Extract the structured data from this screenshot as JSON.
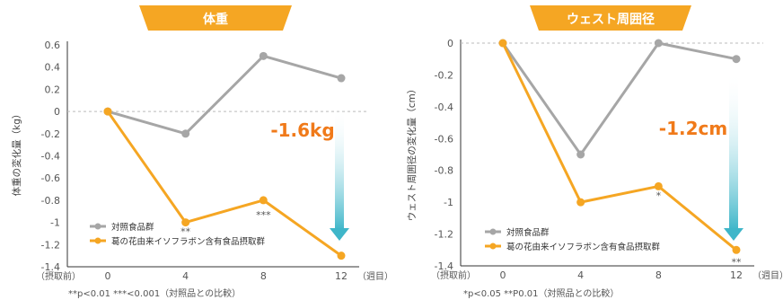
{
  "chart_data": [
    {
      "type": "line",
      "title": "体重",
      "ylabel": "体重の変化量（kg）",
      "ylim": [
        -1.4,
        0.6
      ],
      "yticks": [
        "0.6",
        "0.4",
        "0.2",
        "0",
        "-0.2",
        "-0.4",
        "-0.6",
        "-0.8",
        "-1",
        "-1.2",
        "-1.4"
      ],
      "x": [
        0,
        4,
        8,
        12
      ],
      "xtick_labels": [
        "0",
        "4",
        "8",
        "12"
      ],
      "x_prefix": "（摂取前）",
      "x_suffix": "（週目）",
      "series": [
        {
          "name": "対照食品群",
          "color": "#a6a6a6",
          "values": [
            0,
            -0.2,
            0.5,
            0.3
          ]
        },
        {
          "name": "葛の花由来イソフラボン含有食品摂取群",
          "color": "#f5a623",
          "values": [
            0,
            -1.0,
            -0.8,
            -1.3
          ]
        }
      ],
      "significance": [
        {
          "x": 4,
          "label": "**"
        },
        {
          "x": 8,
          "label": "***"
        }
      ],
      "callout": "-1.6kg",
      "footnote": "**p<0.01 ***<0.001（対照品との比較）"
    },
    {
      "type": "line",
      "title": "ウェスト周囲径",
      "ylabel": "ウェスト周囲径の変化量（cm）",
      "ylim": [
        -1.4,
        0
      ],
      "yticks": [
        "0",
        "-0.2",
        "-0.4",
        "-0.6",
        "-0.8",
        "-1",
        "-1.2",
        "-1.4"
      ],
      "x": [
        0,
        4,
        8,
        12
      ],
      "xtick_labels": [
        "0",
        "4",
        "8",
        "12"
      ],
      "x_prefix": "（摂取前）",
      "x_suffix": "（週目）",
      "series": [
        {
          "name": "対照食品群",
          "color": "#a6a6a6",
          "values": [
            0,
            -0.7,
            0,
            -0.1
          ]
        },
        {
          "name": "葛の花由来イソフラボン含有食品摂取群",
          "color": "#f5a623",
          "values": [
            0,
            -1.0,
            -0.9,
            -1.3
          ]
        }
      ],
      "significance": [
        {
          "x": 8,
          "label": "*"
        },
        {
          "x": 12,
          "label": "**"
        }
      ],
      "callout": "-1.2cm",
      "footnote": "*p<0.05 **P0.01（対照品との比較）"
    }
  ]
}
